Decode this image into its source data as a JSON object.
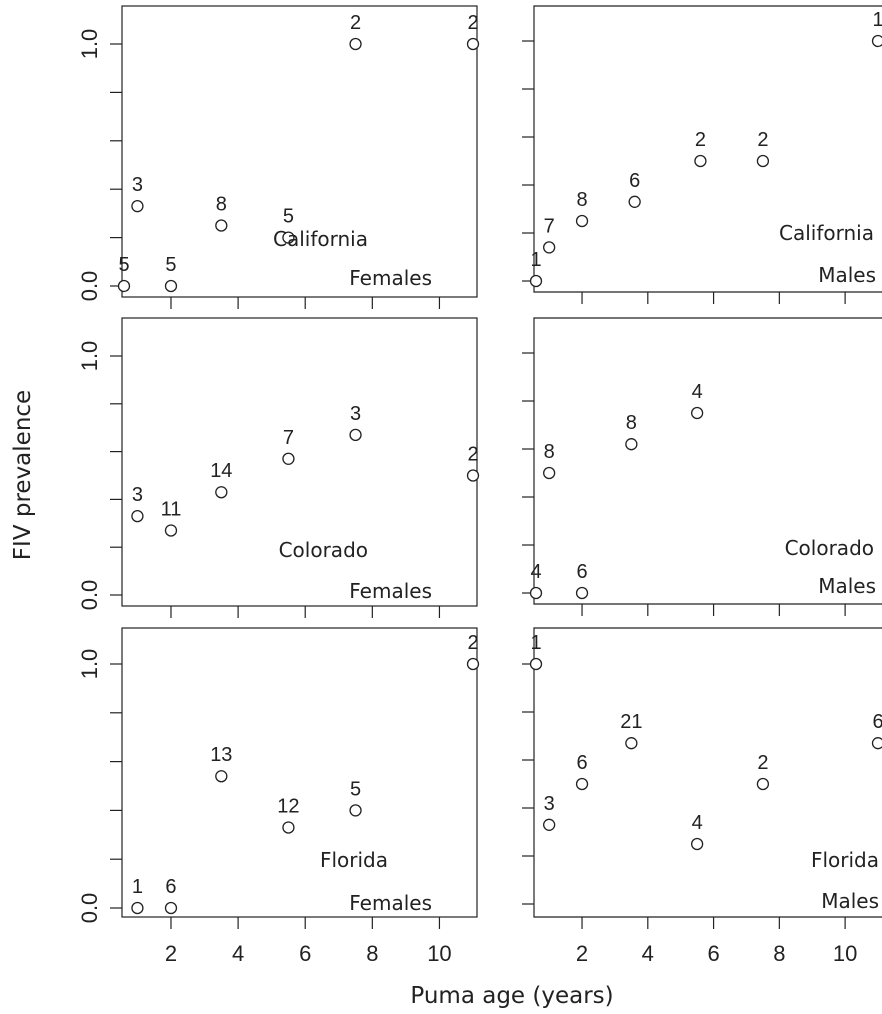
{
  "y_axis_label": "FIV prevalence",
  "x_axis_label": "Puma age (years)",
  "chart_data": [
    {
      "type": "scatter",
      "location": "California",
      "sex": "Females",
      "x": [
        0.6,
        1.0,
        2.0,
        3.5,
        5.5,
        7.5,
        11.0
      ],
      "y": [
        0.0,
        0.33,
        0.0,
        0.25,
        0.2,
        1.0,
        1.0
      ],
      "n": [
        "5",
        "3",
        "5",
        "8",
        "5",
        "2",
        "2"
      ],
      "ylim": [
        0,
        1
      ],
      "y_ticks": [
        "0.0",
        "1.0"
      ],
      "x_ticks": []
    },
    {
      "type": "scatter",
      "location": "California",
      "sex": "Males",
      "x": [
        0.6,
        1.0,
        2.0,
        3.6,
        5.6,
        7.5,
        11.0
      ],
      "y": [
        0.0,
        0.14,
        0.25,
        0.33,
        0.5,
        0.5,
        1.0
      ],
      "n": [
        "1",
        "7",
        "8",
        "6",
        "2",
        "2",
        "1"
      ],
      "ylim": [
        0,
        1
      ],
      "y_ticks": [],
      "x_ticks": []
    },
    {
      "type": "scatter",
      "location": "Colorado",
      "sex": "Females",
      "x": [
        1.0,
        2.0,
        3.5,
        5.5,
        7.5,
        11.0
      ],
      "y": [
        0.33,
        0.27,
        0.43,
        0.57,
        0.67,
        0.5
      ],
      "n": [
        "3",
        "11",
        "14",
        "7",
        "3",
        "2"
      ],
      "ylim": [
        0,
        1
      ],
      "y_ticks": [
        "0.0",
        "1.0"
      ],
      "x_ticks": []
    },
    {
      "type": "scatter",
      "location": "Colorado",
      "sex": "Males",
      "x": [
        0.6,
        1.0,
        2.0,
        3.5,
        5.5
      ],
      "y": [
        0.0,
        0.5,
        0.0,
        0.62,
        0.75
      ],
      "n": [
        "4",
        "8",
        "6",
        "8",
        "4"
      ],
      "ylim": [
        0,
        1
      ],
      "y_ticks": [],
      "x_ticks": []
    },
    {
      "type": "scatter",
      "location": "Florida",
      "sex": "Females",
      "x": [
        1.0,
        2.0,
        3.5,
        5.5,
        7.5,
        11.0
      ],
      "y": [
        0.0,
        0.0,
        0.54,
        0.33,
        0.4,
        1.0
      ],
      "n": [
        "1",
        "6",
        "13",
        "12",
        "5",
        "2"
      ],
      "ylim": [
        0,
        1
      ],
      "y_ticks": [
        "0.0",
        "1.0"
      ],
      "x_ticks": [
        "2",
        "4",
        "6",
        "8",
        "10"
      ]
    },
    {
      "type": "scatter",
      "location": "Florida",
      "sex": "Males",
      "x": [
        0.6,
        1.0,
        2.0,
        3.5,
        5.5,
        7.5,
        11.0
      ],
      "y": [
        1.0,
        0.33,
        0.5,
        0.67,
        0.25,
        0.5,
        0.67
      ],
      "n": [
        "1",
        "3",
        "6",
        "21",
        "4",
        "2",
        "6"
      ],
      "ylim": [
        0,
        1
      ],
      "y_ticks": [],
      "x_ticks": [
        "2",
        "4",
        "6",
        "8",
        "10"
      ]
    }
  ]
}
